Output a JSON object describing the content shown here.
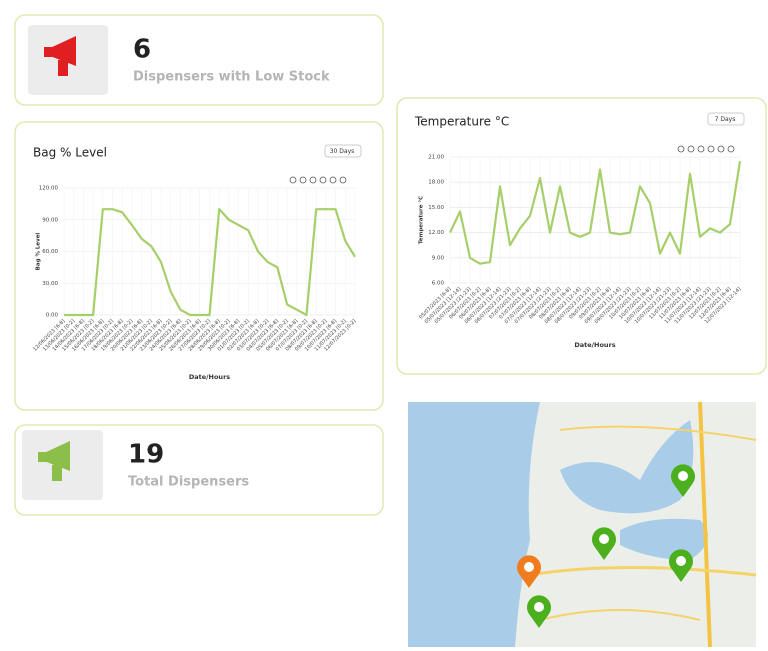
{
  "cards": [
    {
      "value": "6",
      "label": "Dispensers with Low Stock"
    },
    {
      "value": "19",
      "label": "Total Dispensers"
    }
  ],
  "chart_data": [
    {
      "type": "line",
      "title": "Bag % Level",
      "range_selector": "30 Days",
      "x_label": "Date/Hours",
      "y_label": "Bag % Level",
      "color": "#a6cf6a",
      "grid": true,
      "categories": [
        "12/06/2023 [6-8]",
        "13/06/2023 [0-2]",
        "14/06/2023 [6-8]",
        "15/06/2023 [0-2]",
        "16/06/2023 [6-8]",
        "17/06/2023 [0-2]",
        "18/06/2023 [6-8]",
        "19/06/2023 [0-2]",
        "20/06/2023 [6-8]",
        "21/06/2023 [0-2]",
        "22/06/2023 [6-8]",
        "23/06/2023 [0-2]",
        "24/06/2023 [6-8]",
        "25/06/2023 [0-2]",
        "26/06/2023 [6-8]",
        "27/06/2023 [0-2]",
        "28/06/2023 [6-8]",
        "29/06/2023 [0-2]",
        "30/06/2023 [6-8]",
        "01/07/2023 [0-2]",
        "02/07/2023 [6-8]",
        "03/07/2023 [0-2]",
        "04/07/2023 [6-8]",
        "05/07/2023 [0-2]",
        "06/07/2023 [6-8]",
        "07/07/2023 [0-2]",
        "08/07/2023 [6-8]",
        "09/07/2023 [0-2]",
        "10/07/2023 [6-8]",
        "11/07/2023 [0-2]",
        "12/07/2023 [0-2]"
      ],
      "values": [
        0,
        0,
        0,
        0,
        100,
        100,
        97,
        85,
        72,
        65,
        50,
        22,
        5,
        0,
        0,
        0,
        100,
        90,
        85,
        80,
        60,
        50,
        45,
        10,
        5,
        0,
        100,
        100,
        100,
        70,
        55
      ],
      "ylim": [
        0,
        120
      ],
      "yticks": [
        {
          "value": 0,
          "label": "0.00"
        },
        {
          "value": 30,
          "label": "30.00"
        },
        {
          "value": 60,
          "label": "60.00"
        },
        {
          "value": 90,
          "label": "90.00"
        },
        {
          "value": 120,
          "label": "120.00"
        }
      ]
    },
    {
      "type": "line",
      "title": "Temperature °C",
      "range_selector": "7 Days",
      "x_label": "Date/Hours",
      "y_label": "Temperature °C",
      "color": "#a6cf6a",
      "grid": true,
      "categories": [
        "05/07/2023 [6-8]",
        "05/07/2023 [12-14]",
        "05/07/2023 [21-23]",
        "06/07/2023 [0-2]",
        "06/07/2023 [6-8]",
        "06/07/2023 [12-14]",
        "06/07/2023 [21-23]",
        "07/07/2023 [0-2]",
        "07/07/2023 [6-8]",
        "07/07/2023 [12-14]",
        "07/07/2023 [21-23]",
        "08/07/2023 [0-2]",
        "08/07/2023 [6-8]",
        "08/07/2023 [12-14]",
        "08/07/2023 [21-23]",
        "09/07/2023 [0-2]",
        "09/07/2023 [6-8]",
        "09/07/2023 [12-14]",
        "09/07/2023 [21-23]",
        "10/07/2023 [0-2]",
        "10/07/2023 [6-8]",
        "10/07/2023 [12-14]",
        "10/07/2023 [21-23]",
        "11/07/2023 [0-2]",
        "11/07/2023 [6-8]",
        "11/07/2023 [12-14]",
        "11/07/2023 [21-23]",
        "12/07/2023 [0-2]",
        "12/07/2023 [6-8]",
        "12/07/2023 [12-14]"
      ],
      "values": [
        12,
        14.5,
        9,
        8.3,
        8.5,
        17.5,
        10.5,
        12.5,
        14,
        18.5,
        12,
        17.5,
        12,
        11.5,
        12,
        19.5,
        12,
        11.8,
        12,
        17.5,
        15.5,
        9.5,
        12,
        9.5,
        19,
        11.5,
        12.5,
        12,
        13,
        20.5
      ],
      "ylim": [
        6,
        21
      ],
      "yticks": [
        {
          "value": 6,
          "label": "6.00"
        },
        {
          "value": 9,
          "label": "9.00"
        },
        {
          "value": 12,
          "label": "12.00"
        },
        {
          "value": 15,
          "label": "15.00"
        },
        {
          "value": 18,
          "label": "18.00"
        },
        {
          "value": 21,
          "label": "21.00"
        }
      ]
    }
  ]
}
